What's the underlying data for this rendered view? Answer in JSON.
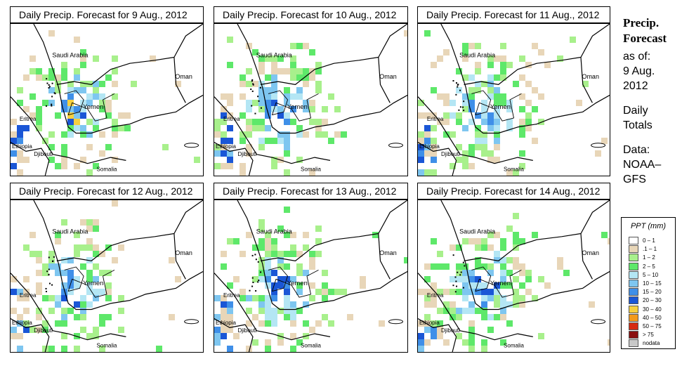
{
  "panels": [
    {
      "title": "Daily Precip. Forecast for  9 Aug., 2012",
      "intensity": 3
    },
    {
      "title": "Daily Precip. Forecast for  10 Aug., 2012",
      "intensity": 2
    },
    {
      "title": "Daily Precip. Forecast for  11 Aug., 2012",
      "intensity": 2
    },
    {
      "title": "Daily Precip. Forecast for  12 Aug., 2012",
      "intensity": 2
    },
    {
      "title": "Daily Precip. Forecast for  13 Aug., 2012",
      "intensity": 2
    },
    {
      "title": "Daily Precip. Forecast for  14 Aug., 2012",
      "intensity": 2
    }
  ],
  "map_labels": {
    "saudi_arabia": "Saudi Arabia",
    "oman": "Oman",
    "yemen": "Yemen",
    "eritrea": "Eritrea",
    "ethiopia": "Ethiopia",
    "djibouti": "Djibouti",
    "somalia": "Somalia"
  },
  "side": {
    "title_line1": "Precip.",
    "title_line2": "Forecast",
    "asof_line1": "as of:",
    "asof_line2": "9 Aug.",
    "asof_line3": "2012",
    "daily_line1": "Daily",
    "daily_line2": "Totals",
    "data_line1": "Data:",
    "data_line2": "NOAA–",
    "data_line3": "GFS"
  },
  "legend": {
    "title": "PPT (mm)",
    "items": [
      {
        "label": "0 – 1",
        "color": "#ffffff"
      },
      {
        "label": ".1 – 1",
        "color": "#e8d6b8"
      },
      {
        "label": "1 – 2",
        "color": "#a8f08c"
      },
      {
        "label": "2 – 5",
        "color": "#5ee86a"
      },
      {
        "label": "5 – 10",
        "color": "#b4e6f4"
      },
      {
        "label": "10 – 15",
        "color": "#7ec6f0"
      },
      {
        "label": "15 – 20",
        "color": "#3f8fe8"
      },
      {
        "label": "20 – 30",
        "color": "#1a56d6"
      },
      {
        "label": "30 – 40",
        "color": "#f6d040"
      },
      {
        "label": "40 – 50",
        "color": "#f39a1c"
      },
      {
        "label": "50 – 75",
        "color": "#d62a10"
      },
      {
        "label": "> 75",
        "color": "#8a1010"
      },
      {
        "label": "nodata",
        "color": "#c8c8c8"
      }
    ]
  }
}
